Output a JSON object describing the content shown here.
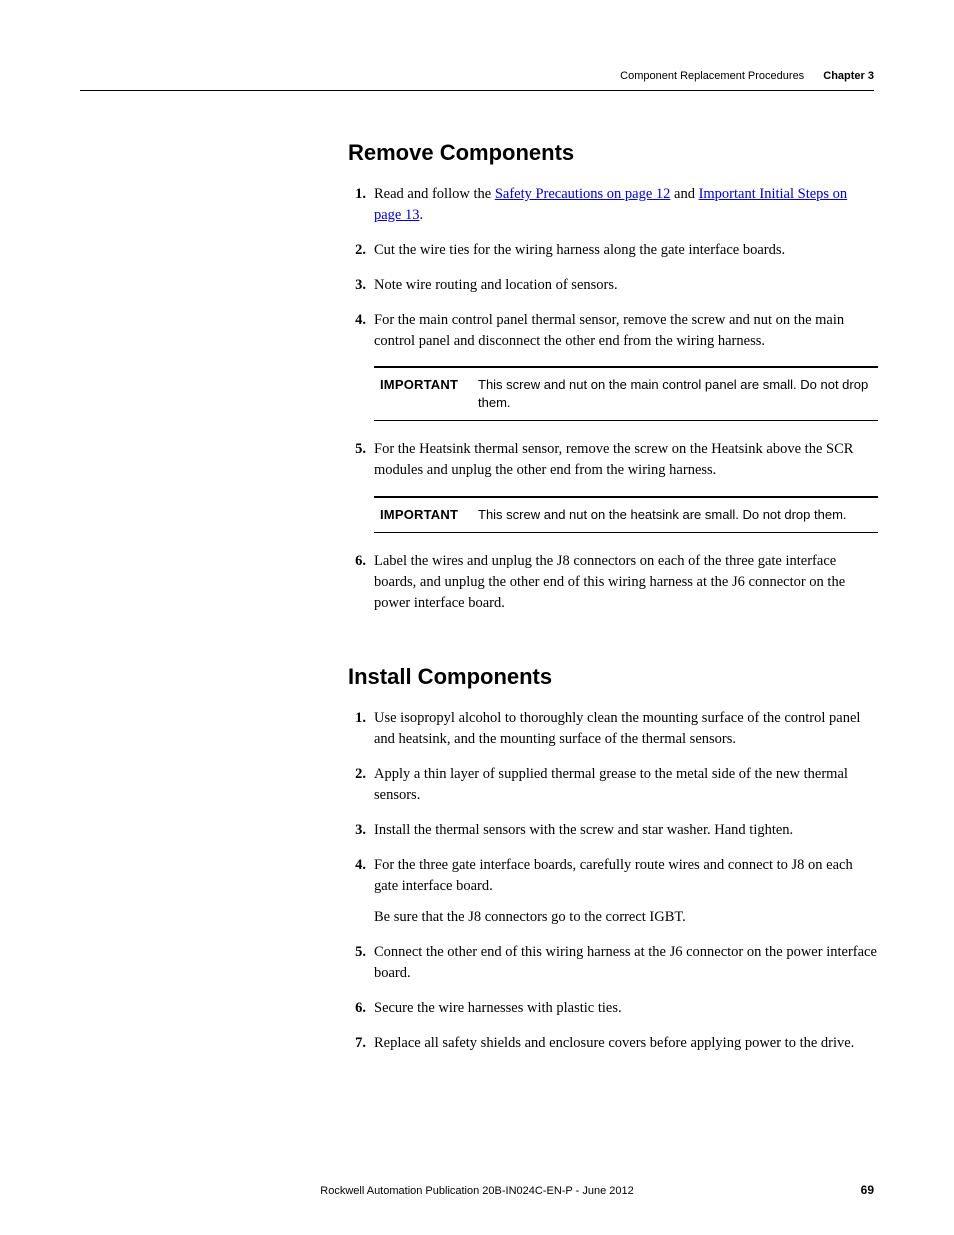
{
  "header": {
    "section_title": "Component Replacement Procedures",
    "chapter": "Chapter 3"
  },
  "remove": {
    "heading": "Remove Components",
    "items": [
      {
        "num": "1.",
        "pre": "Read and follow the ",
        "link1": "Safety Precautions on page 12",
        "mid": " and ",
        "link2": "Important Initial Steps on page 13",
        "post": "."
      },
      {
        "num": "2.",
        "text": "Cut the wire ties for the wiring harness along the gate interface boards."
      },
      {
        "num": "3.",
        "text": "Note wire routing and location of sensors."
      },
      {
        "num": "4.",
        "text": "For the main control panel thermal sensor, remove the screw and nut on the main control panel and disconnect the other end from the wiring harness."
      }
    ],
    "important1": {
      "label": "IMPORTANT",
      "text": "This screw and nut on the main control panel are small. Do not drop them."
    },
    "item5": {
      "num": "5.",
      "text": "For the Heatsink thermal sensor, remove the screw on the Heatsink above the SCR modules and unplug the other end from the wiring harness."
    },
    "important2": {
      "label": "IMPORTANT",
      "text": "This screw and nut on the heatsink are small. Do not drop them."
    },
    "item6": {
      "num": "6.",
      "text": "Label the wires and unplug the J8 connectors on each of the three gate interface boards, and unplug the other end of this wiring harness at the J6 connector on the power interface board."
    }
  },
  "install": {
    "heading": "Install Components",
    "items": [
      {
        "num": "1.",
        "text": "Use isopropyl alcohol to thoroughly clean the mounting surface of the control panel and heatsink, and the mounting surface of the thermal sensors."
      },
      {
        "num": "2.",
        "text": "Apply a thin layer of supplied thermal grease to the metal side of the new thermal sensors."
      },
      {
        "num": "3.",
        "text": "Install the thermal sensors with the screw and star washer. Hand tighten."
      },
      {
        "num": "4.",
        "text": "For the three gate interface boards, carefully route wires and connect to J8 on each gate interface board.",
        "sub": "Be sure that the J8 connectors go to the correct IGBT."
      },
      {
        "num": "5.",
        "text": "Connect the other end of this wiring harness at the J6 connector on the power interface board."
      },
      {
        "num": "6.",
        "text": "Secure the wire harnesses with plastic ties."
      },
      {
        "num": "7.",
        "text": "Replace all safety shields and enclosure covers before applying power to the drive."
      }
    ]
  },
  "footer": {
    "pub": "Rockwell Automation Publication 20B-IN024C-EN-P - June 2012",
    "page": "69"
  }
}
